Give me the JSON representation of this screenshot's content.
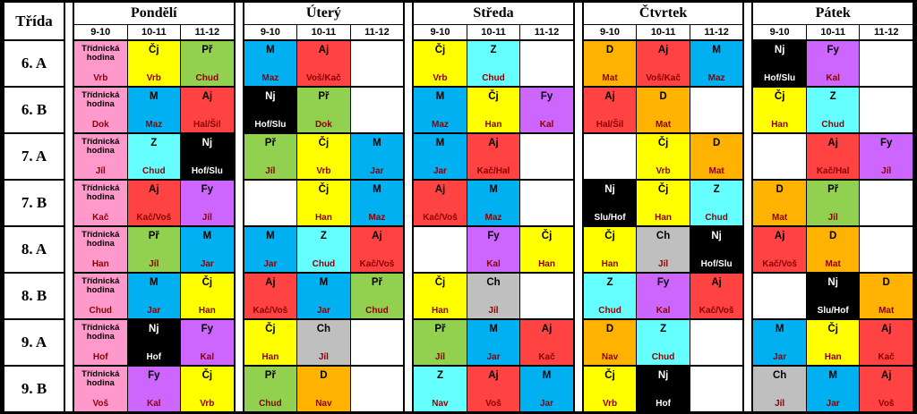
{
  "palette": {
    "Třídnická hodina": "#FF99CC",
    "Čj": "#FFFF00",
    "Př": "#92D050",
    "M": "#00B0F0",
    "Aj": "#FF4343",
    "Nj": "#000000",
    "Z": "#66FFFF",
    "Fy": "#CC66FF",
    "D": "#FFB300",
    "Ch": "#BFBFBF"
  },
  "header": {
    "class_col_label": "Třída",
    "days": [
      "Pondělí",
      "Úterý",
      "Středa",
      "Čtvrtek",
      "Pátek"
    ],
    "times": [
      "9-10",
      "10-11",
      "11-12"
    ]
  },
  "rows": [
    {
      "class": "6. A",
      "cells": [
        {
          "s": "Třídnická hodina",
          "t": "Vrb"
        },
        {
          "s": "Čj",
          "t": "Vrb"
        },
        {
          "s": "Př",
          "t": "Chud"
        },
        {
          "s": "M",
          "t": "Maz"
        },
        {
          "s": "Aj",
          "t": "Voš/Kač"
        },
        null,
        {
          "s": "Čj",
          "t": "Vrb"
        },
        {
          "s": "Z",
          "t": "Chud"
        },
        null,
        {
          "s": "D",
          "t": "Mat"
        },
        {
          "s": "Aj",
          "t": "Voš/Kač"
        },
        {
          "s": "M",
          "t": "Maz"
        },
        {
          "s": "Nj",
          "t": "Hof/Slu"
        },
        {
          "s": "Fy",
          "t": "Kal"
        },
        null
      ]
    },
    {
      "class": "6. B",
      "cells": [
        {
          "s": "Třídnická hodina",
          "t": "Dok"
        },
        {
          "s": "M",
          "t": "Maz"
        },
        {
          "s": "Aj",
          "t": "Hal/Šil"
        },
        {
          "s": "Nj",
          "t": "Hof/Slu"
        },
        {
          "s": "Př",
          "t": "Dok"
        },
        null,
        {
          "s": "M",
          "t": "Maz"
        },
        {
          "s": "Čj",
          "t": "Han"
        },
        {
          "s": "Fy",
          "t": "Kal"
        },
        {
          "s": "Aj",
          "t": "Hal/Šil"
        },
        {
          "s": "D",
          "t": "Mat"
        },
        null,
        {
          "s": "Čj",
          "t": "Han"
        },
        {
          "s": "Z",
          "t": "Chud"
        },
        null
      ]
    },
    {
      "class": "7. A",
      "cells": [
        {
          "s": "Třídnická hodina",
          "t": "Jíl"
        },
        {
          "s": "Z",
          "t": "Chud"
        },
        {
          "s": "Nj",
          "t": "Hof/Slu"
        },
        {
          "s": "Př",
          "t": "Jíl"
        },
        {
          "s": "Čj",
          "t": "Vrb"
        },
        {
          "s": "M",
          "t": "Jar"
        },
        {
          "s": "M",
          "t": "Jar"
        },
        {
          "s": "Aj",
          "t": "Kač/Hal"
        },
        null,
        null,
        {
          "s": "Čj",
          "t": "Vrb"
        },
        {
          "s": "D",
          "t": "Mat"
        },
        null,
        {
          "s": "Aj",
          "t": "Kač/Hal"
        },
        {
          "s": "Fy",
          "t": "Jíl"
        }
      ]
    },
    {
      "class": "7. B",
      "cells": [
        {
          "s": "Třídnická hodina",
          "t": "Kač"
        },
        {
          "s": "Aj",
          "t": "Kač/Voš"
        },
        {
          "s": "Fy",
          "t": "Jíl"
        },
        null,
        {
          "s": "Čj",
          "t": "Han"
        },
        {
          "s": "M",
          "t": "Maz"
        },
        {
          "s": "Aj",
          "t": "Kač/Voš"
        },
        {
          "s": "M",
          "t": "Maz"
        },
        null,
        {
          "s": "Nj",
          "t": "Slu/Hof"
        },
        {
          "s": "Čj",
          "t": "Han"
        },
        {
          "s": "Z",
          "t": "Chud"
        },
        {
          "s": "D",
          "t": "Mat"
        },
        {
          "s": "Př",
          "t": "Jíl"
        },
        null
      ]
    },
    {
      "class": "8. A",
      "cells": [
        {
          "s": "Třídnická hodina",
          "t": "Han"
        },
        {
          "s": "Př",
          "t": "Jíl"
        },
        {
          "s": "M",
          "t": "Jar"
        },
        {
          "s": "M",
          "t": "Jar"
        },
        {
          "s": "Z",
          "t": "Chud"
        },
        {
          "s": "Aj",
          "t": "Kač/Voš"
        },
        null,
        {
          "s": "Fy",
          "t": "Kal"
        },
        {
          "s": "Čj",
          "t": "Han"
        },
        {
          "s": "Čj",
          "t": "Han"
        },
        {
          "s": "Ch",
          "t": "Jíl"
        },
        {
          "s": "Nj",
          "t": "Hof/Slu"
        },
        {
          "s": "Aj",
          "t": "Kač/Voš"
        },
        {
          "s": "D",
          "t": "Mat"
        },
        null
      ]
    },
    {
      "class": "8. B",
      "cells": [
        {
          "s": "Třídnická hodina",
          "t": "Chud"
        },
        {
          "s": "M",
          "t": "Jar"
        },
        {
          "s": "Čj",
          "t": "Han"
        },
        {
          "s": "Aj",
          "t": "Kač/Voš"
        },
        {
          "s": "M",
          "t": "Jar"
        },
        {
          "s": "Př",
          "t": "Chud"
        },
        {
          "s": "Čj",
          "t": "Han"
        },
        {
          "s": "Ch",
          "t": "Jíl"
        },
        null,
        {
          "s": "Z",
          "t": "Chud"
        },
        {
          "s": "Fy",
          "t": "Kal"
        },
        {
          "s": "Aj",
          "t": "Kač/Voš"
        },
        null,
        {
          "s": "Nj",
          "t": "Slu/Hof"
        },
        {
          "s": "D",
          "t": "Mat"
        }
      ]
    },
    {
      "class": "9. A",
      "cells": [
        {
          "s": "Třídnická hodina",
          "t": "Hof"
        },
        {
          "s": "Nj",
          "t": "Hof"
        },
        {
          "s": "Fy",
          "t": "Kal"
        },
        {
          "s": "Čj",
          "t": "Han"
        },
        {
          "s": "Ch",
          "t": "Jíl"
        },
        null,
        {
          "s": "Př",
          "t": "Jíl"
        },
        {
          "s": "M",
          "t": "Jar"
        },
        {
          "s": "Aj",
          "t": "Kač"
        },
        {
          "s": "D",
          "t": "Nav"
        },
        {
          "s": "Z",
          "t": "Chud"
        },
        null,
        {
          "s": "M",
          "t": "Jar"
        },
        {
          "s": "Čj",
          "t": "Han"
        },
        {
          "s": "Aj",
          "t": "Kač"
        }
      ]
    },
    {
      "class": "9. B",
      "cells": [
        {
          "s": "Třídnická hodina",
          "t": "Voš"
        },
        {
          "s": "Fy",
          "t": "Kal"
        },
        {
          "s": "Čj",
          "t": "Vrb"
        },
        {
          "s": "Př",
          "t": "Chud"
        },
        {
          "s": "D",
          "t": "Nav"
        },
        null,
        {
          "s": "Z",
          "t": "Nav"
        },
        {
          "s": "Aj",
          "t": "Voš"
        },
        {
          "s": "M",
          "t": "Jar"
        },
        {
          "s": "Čj",
          "t": "Vrb"
        },
        {
          "s": "Nj",
          "t": "Hof"
        },
        null,
        {
          "s": "Ch",
          "t": "Jíl"
        },
        {
          "s": "M",
          "t": "Jar"
        },
        {
          "s": "Aj",
          "t": "Voš"
        }
      ]
    }
  ]
}
